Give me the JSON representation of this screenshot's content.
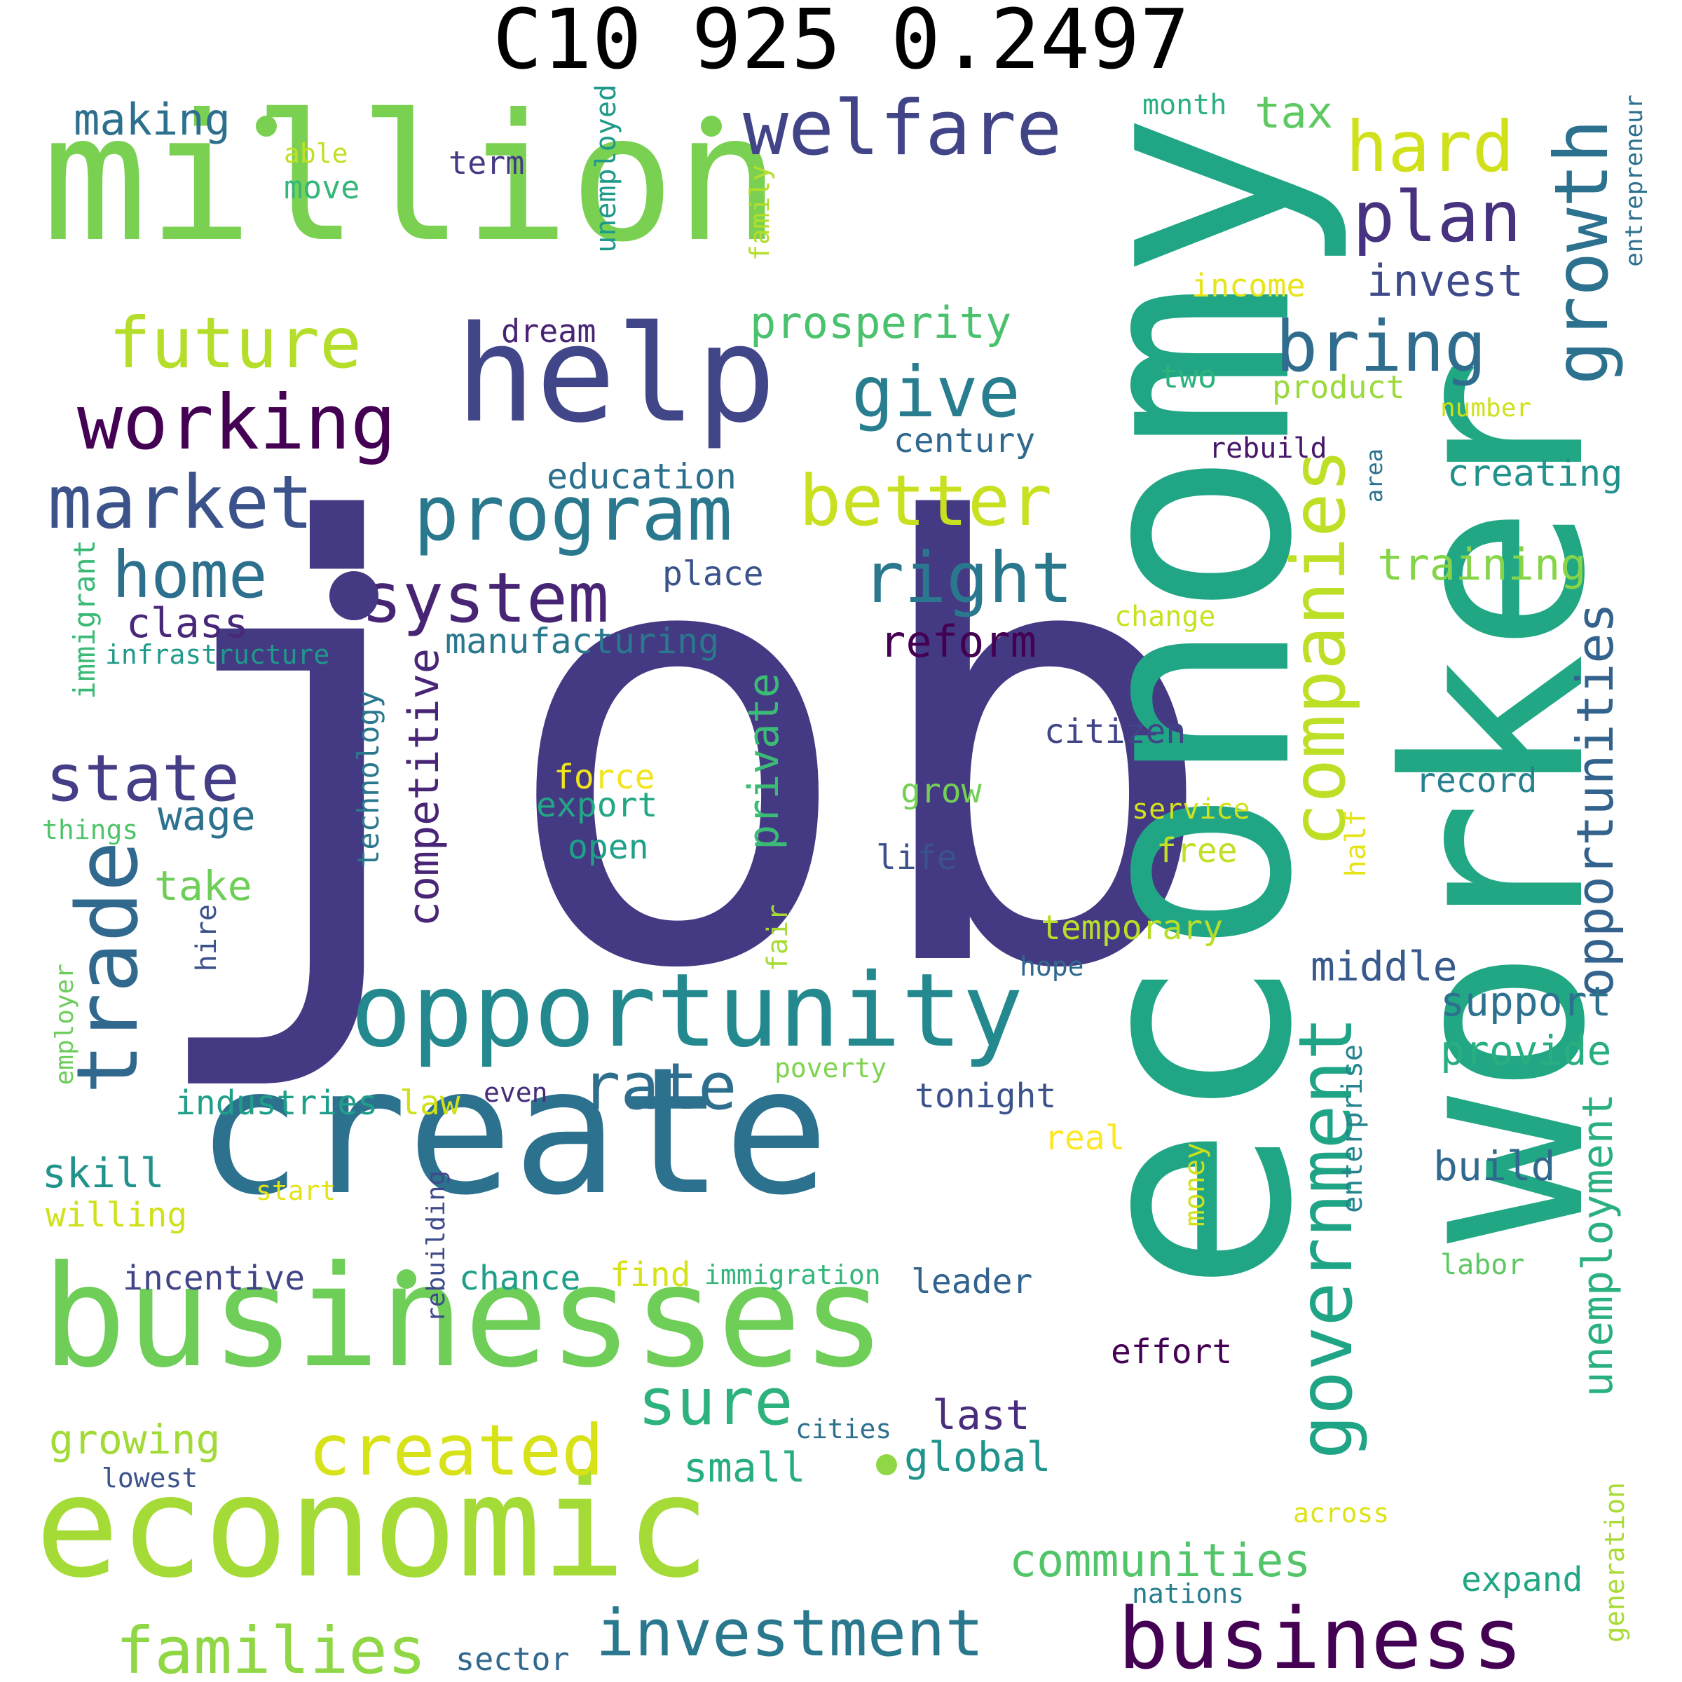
{
  "title": "C10 925 0.2497",
  "words": [
    {
      "text": "job",
      "color": "#443983"
    },
    {
      "text": "economy",
      "color": "#21a685"
    },
    {
      "text": "worker",
      "color": "#22a785"
    },
    {
      "text": "million",
      "color": "#7ad151"
    },
    {
      "text": "create",
      "color": "#2c718e"
    },
    {
      "text": "businesses",
      "color": "#6ece58"
    },
    {
      "text": "economic",
      "color": "#a5db36"
    },
    {
      "text": "help",
      "color": "#404688"
    },
    {
      "text": "opportunity",
      "color": "#23898e"
    },
    {
      "text": "business",
      "color": "#440154"
    },
    {
      "text": "welfare",
      "color": "#414487"
    },
    {
      "text": "working",
      "color": "#440154"
    },
    {
      "text": "program",
      "color": "#2a788e"
    },
    {
      "text": "market",
      "color": "#3b528b"
    },
    {
      "text": "system",
      "color": "#482475"
    },
    {
      "text": "trade",
      "color": "#31688e"
    },
    {
      "text": "companies",
      "color": "#bddf26"
    },
    {
      "text": "government",
      "color": "#20a486"
    },
    {
      "text": "growth",
      "color": "#2c718e"
    },
    {
      "text": "future",
      "color": "#b5de2b"
    },
    {
      "text": "hard",
      "color": "#d0e11c"
    },
    {
      "text": "bring",
      "color": "#2f6c8e"
    },
    {
      "text": "plan",
      "color": "#46327e"
    },
    {
      "text": "give",
      "color": "#287d8e"
    },
    {
      "text": "better",
      "color": "#c8e020"
    },
    {
      "text": "right",
      "color": "#2a788e"
    },
    {
      "text": "home",
      "color": "#2d708e"
    },
    {
      "text": "state",
      "color": "#433e85"
    },
    {
      "text": "created",
      "color": "#d8e219"
    },
    {
      "text": "investment",
      "color": "#2a788e"
    },
    {
      "text": "families",
      "color": "#8fd744"
    },
    {
      "text": "sure",
      "color": "#2db27d"
    },
    {
      "text": "rate",
      "color": "#2e6f8e"
    },
    {
      "text": "opportunities",
      "color": "#33638d"
    },
    {
      "text": "unemployment",
      "color": "#2ab07f"
    },
    {
      "text": "competitive",
      "color": "#482576"
    },
    {
      "text": "private",
      "color": "#3bbb75"
    },
    {
      "text": "communities",
      "color": "#52c569"
    },
    {
      "text": "prosperity",
      "color": "#4ac16d"
    },
    {
      "text": "making",
      "color": "#2d708e"
    },
    {
      "text": "invest",
      "color": "#3e4a89"
    },
    {
      "text": "tax",
      "color": "#5ec962"
    },
    {
      "text": "training",
      "color": "#86d549"
    },
    {
      "text": "creating",
      "color": "#21918c"
    },
    {
      "text": "reform",
      "color": "#440154"
    },
    {
      "text": "class",
      "color": "#482878"
    },
    {
      "text": "wage",
      "color": "#2c728e"
    },
    {
      "text": "take",
      "color": "#6ece58"
    },
    {
      "text": "middle",
      "color": "#38598c"
    },
    {
      "text": "support",
      "color": "#2c728e"
    },
    {
      "text": "provide",
      "color": "#28ae80"
    },
    {
      "text": "build",
      "color": "#31688e"
    },
    {
      "text": "skill",
      "color": "#21918c"
    },
    {
      "text": "global",
      "color": "#1f948c"
    },
    {
      "text": "last",
      "color": "#472d7b"
    },
    {
      "text": "small",
      "color": "#27ad81"
    },
    {
      "text": "growing",
      "color": "#a2da37"
    },
    {
      "text": "education",
      "color": "#2d708e"
    },
    {
      "text": "manufacturing",
      "color": "#2a788e"
    },
    {
      "text": "century",
      "color": "#31688e"
    },
    {
      "text": "product",
      "color": "#9bd93c"
    },
    {
      "text": "income",
      "color": "#e7e419"
    },
    {
      "text": "dream",
      "color": "#482475"
    },
    {
      "text": "term",
      "color": "#443983"
    },
    {
      "text": "move",
      "color": "#35b779"
    },
    {
      "text": "able",
      "color": "#c2df23"
    },
    {
      "text": "unemployed",
      "color": "#1f9a8a"
    },
    {
      "text": "family",
      "color": "#b5de2b"
    },
    {
      "text": "month",
      "color": "#2ab07f"
    },
    {
      "text": "two",
      "color": "#2db27d"
    },
    {
      "text": "entrepreneur",
      "color": "#2c728e"
    },
    {
      "text": "number",
      "color": "#d0e11c"
    },
    {
      "text": "rebuild",
      "color": "#481769"
    },
    {
      "text": "area",
      "color": "#2c728e"
    },
    {
      "text": "place",
      "color": "#3b528b"
    },
    {
      "text": "change",
      "color": "#cae11f"
    },
    {
      "text": "infrastructure",
      "color": "#1f9a8a"
    },
    {
      "text": "immigrant",
      "color": "#3aba76"
    },
    {
      "text": "technology",
      "color": "#2a788e"
    },
    {
      "text": "citizen",
      "color": "#414487"
    },
    {
      "text": "record",
      "color": "#27808e"
    },
    {
      "text": "force",
      "color": "#f1e51d"
    },
    {
      "text": "export",
      "color": "#22a785"
    },
    {
      "text": "grow",
      "color": "#73d056"
    },
    {
      "text": "service",
      "color": "#d2e21b"
    },
    {
      "text": "open",
      "color": "#1fa088"
    },
    {
      "text": "life",
      "color": "#3b528b"
    },
    {
      "text": "free",
      "color": "#c0df25"
    },
    {
      "text": "half",
      "color": "#e5e419"
    },
    {
      "text": "things",
      "color": "#50c46a"
    },
    {
      "text": "temporary",
      "color": "#b8de29"
    },
    {
      "text": "hire",
      "color": "#3b528b"
    },
    {
      "text": "fair",
      "color": "#a8db34"
    },
    {
      "text": "hope",
      "color": "#31688e"
    },
    {
      "text": "employer",
      "color": "#6ccd5a"
    },
    {
      "text": "poverty",
      "color": "#7fd34e"
    },
    {
      "text": "enterprise",
      "color": "#25848e"
    },
    {
      "text": "industries",
      "color": "#1f9e89"
    },
    {
      "text": "law",
      "color": "#d0e11c"
    },
    {
      "text": "even",
      "color": "#472c7a"
    },
    {
      "text": "tonight",
      "color": "#3b528b"
    },
    {
      "text": "real",
      "color": "#fde725"
    },
    {
      "text": "money",
      "color": "#cde11d"
    },
    {
      "text": "willing",
      "color": "#d0e11c"
    },
    {
      "text": "start",
      "color": "#e2e418"
    },
    {
      "text": "rebuilding",
      "color": "#3e4a89"
    },
    {
      "text": "incentive",
      "color": "#414487"
    },
    {
      "text": "chance",
      "color": "#1f9e89"
    },
    {
      "text": "find",
      "color": "#d8e219"
    },
    {
      "text": "immigration",
      "color": "#32b67a"
    },
    {
      "text": "leader",
      "color": "#33638d"
    },
    {
      "text": "effort",
      "color": "#440154"
    },
    {
      "text": "labor",
      "color": "#5ec962"
    },
    {
      "text": "cities",
      "color": "#2d708e"
    },
    {
      "text": "lowest",
      "color": "#3b528b"
    },
    {
      "text": "across",
      "color": "#dde318"
    },
    {
      "text": "nations",
      "color": "#287d8e"
    },
    {
      "text": "expand",
      "color": "#21a685"
    },
    {
      "text": "generation",
      "color": "#a8db34"
    },
    {
      "text": "sector",
      "color": "#31688e"
    }
  ]
}
